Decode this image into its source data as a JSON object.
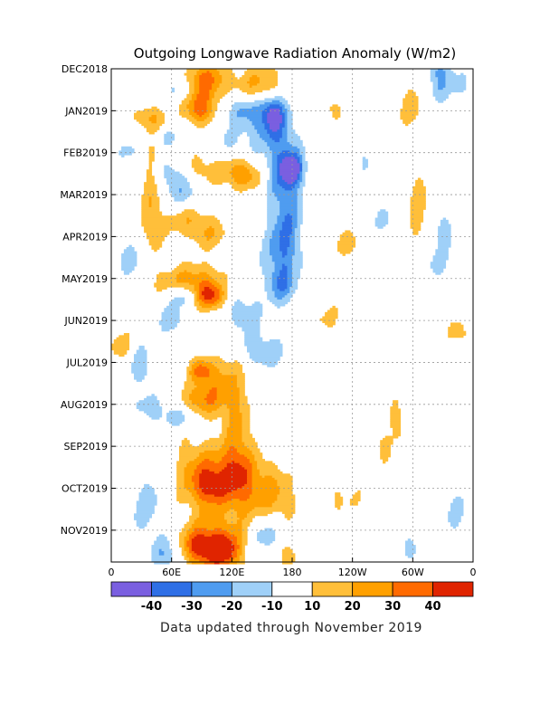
{
  "chart_data": {
    "type": "heatmap",
    "title": "Outgoing Longwave Radiation Anomaly (W/m2)",
    "x_ticks": [
      "0",
      "60E",
      "120E",
      "180",
      "120W",
      "60W",
      "0"
    ],
    "x_tick_values": [
      0,
      60,
      120,
      180,
      240,
      300,
      360
    ],
    "xlim": [
      0,
      360
    ],
    "y_ticks": [
      "DEC2018",
      "JAN2019",
      "FEB2019",
      "MAR2019",
      "APR2019",
      "MAY2019",
      "JUN2019",
      "JUL2019",
      "AUG2019",
      "SEP2019",
      "OCT2019",
      "NOV2019"
    ],
    "y_tick_values": [
      0,
      1,
      2,
      3,
      4,
      5,
      6,
      7,
      8,
      9,
      10,
      11
    ],
    "ylim": [
      0,
      11.8
    ],
    "grid": true,
    "colorbar": {
      "colors": [
        "#7a5fe0",
        "#2f6fe6",
        "#4f9cf0",
        "#9fd0f8",
        "#ffffff",
        "#ffbf3a",
        "#ffa000",
        "#ff6a00",
        "#e02400"
      ],
      "labels": [
        "-40",
        "-30",
        "-20",
        "-10",
        "10",
        "20",
        "30",
        "40"
      ],
      "bounds": [
        -50,
        -40,
        -30,
        -20,
        -10,
        10,
        20,
        30,
        40,
        50
      ]
    },
    "features": [
      {
        "lon": 40,
        "t": 1.2,
        "sl": 12,
        "st": 0.22,
        "a": 18
      },
      {
        "lon": 55,
        "t": 1.6,
        "sl": 10,
        "st": 0.2,
        "a": -14
      },
      {
        "lon": 72,
        "t": 0.5,
        "sl": 12,
        "st": 0.2,
        "a": -16
      },
      {
        "lon": 90,
        "t": 0.5,
        "sl": 14,
        "st": 0.35,
        "a": 24
      },
      {
        "lon": 100,
        "t": 0.2,
        "sl": 18,
        "st": 0.3,
        "a": 18
      },
      {
        "lon": 88,
        "t": 1.0,
        "sl": 10,
        "st": 0.25,
        "a": 30
      },
      {
        "lon": 130,
        "t": 0.9,
        "sl": 14,
        "st": 0.3,
        "a": -18
      },
      {
        "lon": 155,
        "t": 1.2,
        "sl": 16,
        "st": 0.5,
        "a": -22
      },
      {
        "lon": 162,
        "t": 1.1,
        "sl": 7,
        "st": 0.3,
        "a": -30
      },
      {
        "lon": 152,
        "t": 0.3,
        "sl": 14,
        "st": 0.3,
        "a": 22
      },
      {
        "lon": 138,
        "t": 0.6,
        "sl": 14,
        "st": 0.25,
        "a": 14
      },
      {
        "lon": 90,
        "t": 2.3,
        "sl": 16,
        "st": 0.35,
        "a": 18
      },
      {
        "lon": 125,
        "t": 2.4,
        "sl": 14,
        "st": 0.3,
        "a": 22
      },
      {
        "lon": 135,
        "t": 2.6,
        "sl": 10,
        "st": 0.2,
        "a": 14
      },
      {
        "lon": 110,
        "t": 1.9,
        "sl": 20,
        "st": 0.35,
        "a": -14
      },
      {
        "lon": 60,
        "t": 2.5,
        "sl": 12,
        "st": 0.3,
        "a": -18
      },
      {
        "lon": 20,
        "t": 2.0,
        "sl": 10,
        "st": 0.3,
        "a": -12
      },
      {
        "lon": 172,
        "t": 2.3,
        "sl": 12,
        "st": 0.6,
        "a": -26
      },
      {
        "lon": 180,
        "t": 2.4,
        "sl": 8,
        "st": 0.25,
        "a": -34
      },
      {
        "lon": 175,
        "t": 3.8,
        "sl": 11,
        "st": 0.8,
        "a": -24
      },
      {
        "lon": 165,
        "t": 4.5,
        "sl": 12,
        "st": 0.6,
        "a": -16
      },
      {
        "lon": 170,
        "t": 5.2,
        "sl": 10,
        "st": 0.3,
        "a": -18
      },
      {
        "lon": 40,
        "t": 3.1,
        "sl": 8,
        "st": 1.2,
        "a": 18
      },
      {
        "lon": 78,
        "t": 3.6,
        "sl": 18,
        "st": 0.3,
        "a": 18
      },
      {
        "lon": 100,
        "t": 4.0,
        "sl": 14,
        "st": 0.25,
        "a": 14
      },
      {
        "lon": 75,
        "t": 3.0,
        "sl": 14,
        "st": 0.25,
        "a": -16
      },
      {
        "lon": 20,
        "t": 4.6,
        "sl": 10,
        "st": 0.3,
        "a": -16
      },
      {
        "lon": 70,
        "t": 5.4,
        "sl": 10,
        "st": 0.2,
        "a": -22
      },
      {
        "lon": 90,
        "t": 5.1,
        "sl": 16,
        "st": 0.35,
        "a": 22
      },
      {
        "lon": 100,
        "t": 5.45,
        "sl": 10,
        "st": 0.22,
        "a": 32
      },
      {
        "lon": 65,
        "t": 5.1,
        "sl": 16,
        "st": 0.25,
        "a": 16
      },
      {
        "lon": 60,
        "t": 6.0,
        "sl": 10,
        "st": 0.25,
        "a": -16
      },
      {
        "lon": 130,
        "t": 5.8,
        "sl": 14,
        "st": 0.35,
        "a": -16
      },
      {
        "lon": 140,
        "t": 6.6,
        "sl": 12,
        "st": 0.3,
        "a": -12
      },
      {
        "lon": 160,
        "t": 6.8,
        "sl": 16,
        "st": 0.3,
        "a": -12
      },
      {
        "lon": 10,
        "t": 6.6,
        "sl": 8,
        "st": 0.3,
        "a": 16
      },
      {
        "lon": 90,
        "t": 7.2,
        "sl": 9,
        "st": 0.2,
        "a": 30
      },
      {
        "lon": 108,
        "t": 7.5,
        "sl": 14,
        "st": 0.5,
        "a": 16
      },
      {
        "lon": 88,
        "t": 7.9,
        "sl": 16,
        "st": 0.3,
        "a": 24
      },
      {
        "lon": 70,
        "t": 8.3,
        "sl": 12,
        "st": 0.2,
        "a": -18
      },
      {
        "lon": 40,
        "t": 8.1,
        "sl": 12,
        "st": 0.25,
        "a": -14
      },
      {
        "lon": 30,
        "t": 7.1,
        "sl": 10,
        "st": 0.4,
        "a": -16
      },
      {
        "lon": 125,
        "t": 8.8,
        "sl": 10,
        "st": 1.2,
        "a": 20
      },
      {
        "lon": 80,
        "t": 9.6,
        "sl": 14,
        "st": 0.6,
        "a": 14
      },
      {
        "lon": 110,
        "t": 9.7,
        "sl": 22,
        "st": 0.5,
        "a": 30
      },
      {
        "lon": 98,
        "t": 10.0,
        "sl": 10,
        "st": 0.3,
        "a": 22
      },
      {
        "lon": 145,
        "t": 10.1,
        "sl": 18,
        "st": 0.6,
        "a": 16
      },
      {
        "lon": 165,
        "t": 10.3,
        "sl": 16,
        "st": 0.5,
        "a": 14
      },
      {
        "lon": 100,
        "t": 11.3,
        "sl": 20,
        "st": 0.5,
        "a": 26
      },
      {
        "lon": 112,
        "t": 11.5,
        "sl": 12,
        "st": 0.3,
        "a": 34
      },
      {
        "lon": 85,
        "t": 11.4,
        "sl": 12,
        "st": 0.3,
        "a": 26
      },
      {
        "lon": 55,
        "t": 11.6,
        "sl": 12,
        "st": 0.3,
        "a": -20
      },
      {
        "lon": 35,
        "t": 10.4,
        "sl": 14,
        "st": 0.6,
        "a": -14
      },
      {
        "lon": 155,
        "t": 11.1,
        "sl": 12,
        "st": 0.4,
        "a": -22
      },
      {
        "lon": 175,
        "t": 11.6,
        "sl": 12,
        "st": 0.3,
        "a": 16
      },
      {
        "lon": 325,
        "t": 0.0,
        "sl": 8,
        "st": 0.5,
        "a": -22
      },
      {
        "lon": 345,
        "t": 0.4,
        "sl": 12,
        "st": 0.3,
        "a": -12
      },
      {
        "lon": 300,
        "t": 1.0,
        "sl": 10,
        "st": 0.5,
        "a": 14
      },
      {
        "lon": 305,
        "t": 3.4,
        "sl": 8,
        "st": 0.8,
        "a": 16
      },
      {
        "lon": 270,
        "t": 3.6,
        "sl": 14,
        "st": 0.3,
        "a": -10
      },
      {
        "lon": 240,
        "t": 4.2,
        "sl": 14,
        "st": 0.3,
        "a": 14
      },
      {
        "lon": 322,
        "t": 4.6,
        "sl": 12,
        "st": 0.4,
        "a": -12
      },
      {
        "lon": 330,
        "t": 3.8,
        "sl": 8,
        "st": 0.3,
        "a": -14
      },
      {
        "lon": 345,
        "t": 6.3,
        "sl": 8,
        "st": 0.3,
        "a": 14
      },
      {
        "lon": 285,
        "t": 8.4,
        "sl": 6,
        "st": 0.4,
        "a": 16
      },
      {
        "lon": 270,
        "t": 9.0,
        "sl": 6,
        "st": 0.3,
        "a": 14
      },
      {
        "lon": 340,
        "t": 10.5,
        "sl": 10,
        "st": 0.5,
        "a": -12
      },
      {
        "lon": 295,
        "t": 11.4,
        "sl": 14,
        "st": 0.3,
        "a": -12
      },
      {
        "lon": 220,
        "t": 1.0,
        "sl": 12,
        "st": 0.3,
        "a": 12
      },
      {
        "lon": 250,
        "t": 2.2,
        "sl": 10,
        "st": 0.3,
        "a": -11
      },
      {
        "lon": 215,
        "t": 6.0,
        "sl": 12,
        "st": 0.4,
        "a": 11
      },
      {
        "lon": 230,
        "t": 10.2,
        "sl": 16,
        "st": 0.4,
        "a": 11
      }
    ]
  },
  "footer": "Data updated through November 2019"
}
